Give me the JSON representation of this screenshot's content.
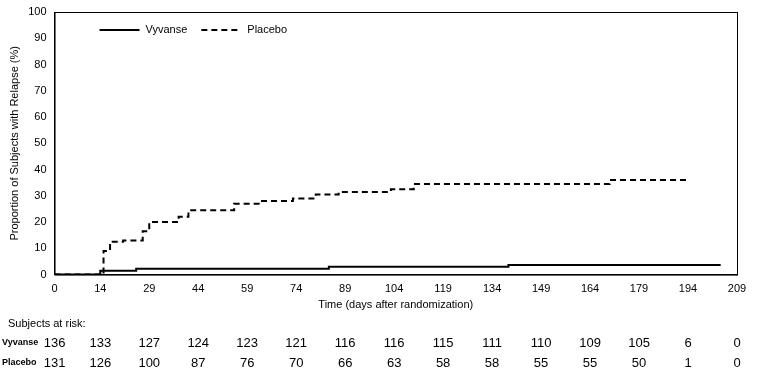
{
  "chart_data": {
    "type": "line",
    "x_label": "Time (days after randomization)",
    "y_label": "Proportion of Subjects with Relapse (%)",
    "xlim": [
      0,
      209
    ],
    "xticks": [
      0,
      14,
      29,
      44,
      59,
      74,
      89,
      104,
      119,
      134,
      149,
      164,
      179,
      194,
      209
    ],
    "ylim": [
      0,
      100
    ],
    "yticks": [
      0,
      10,
      20,
      30,
      40,
      50,
      60,
      70,
      80,
      90,
      100
    ],
    "grid": false,
    "legend": "upper left",
    "series": [
      {
        "name": "Vyvanse",
        "color": "#000000",
        "line_style": "solid",
        "x": [
          0,
          14,
          14,
          25,
          84,
          139,
          204
        ],
        "values": [
          0,
          0,
          1.5,
          2.2,
          3,
          3.7,
          3.7
        ]
      },
      {
        "name": "Placebo",
        "color": "#000000",
        "line_style": "dashed",
        "x": [
          0,
          14,
          15,
          17,
          21,
          27,
          29,
          38,
          41,
          48,
          55,
          63,
          73,
          80,
          87,
          103,
          110,
          170,
          194
        ],
        "values": [
          0,
          0,
          9,
          12.5,
          13,
          16.5,
          20,
          22,
          24.5,
          24.5,
          27,
          28,
          29,
          30.5,
          31.5,
          32.5,
          34.5,
          36,
          36
        ]
      }
    ],
    "risk_table": {
      "title": "Subjects at risk:",
      "times": [
        0,
        14,
        29,
        44,
        59,
        74,
        89,
        104,
        119,
        134,
        149,
        164,
        179,
        194,
        209
      ],
      "rows": [
        {
          "name": "Vyvanse",
          "values": [
            136,
            133,
            127,
            124,
            123,
            121,
            116,
            116,
            115,
            111,
            110,
            109,
            105,
            6,
            0
          ]
        },
        {
          "name": "Placebo",
          "values": [
            131,
            126,
            100,
            87,
            76,
            70,
            66,
            63,
            58,
            58,
            55,
            55,
            50,
            1,
            0
          ]
        }
      ]
    }
  }
}
